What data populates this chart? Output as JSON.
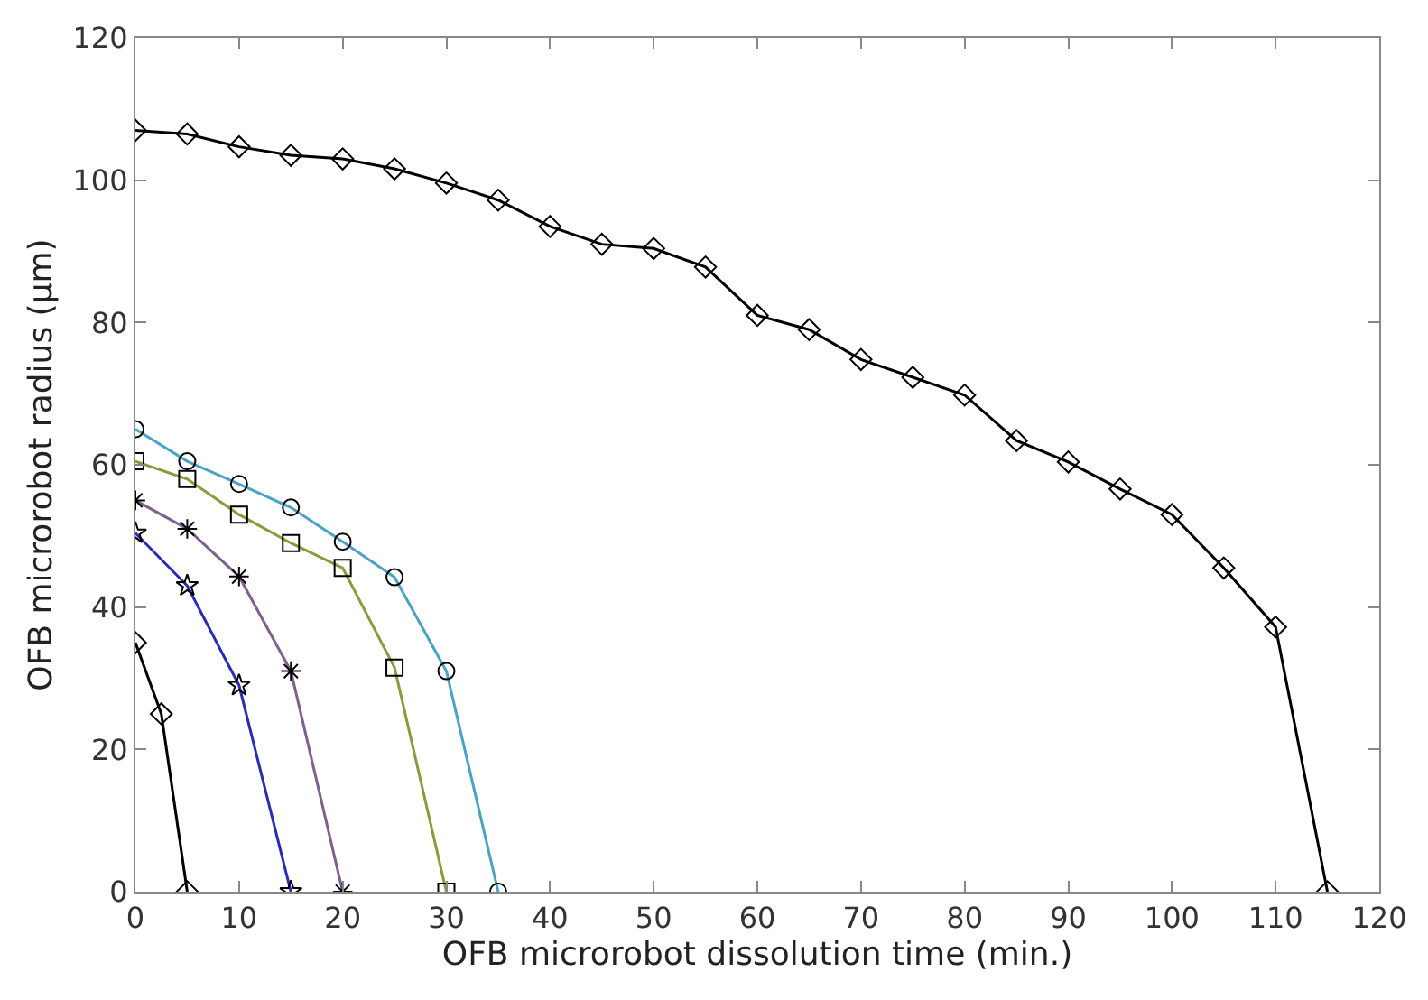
{
  "chart_data": {
    "type": "line",
    "xlabel": "OFB microrobot dissolution time (min.)",
    "ylabel": "OFB microrobot radius (μm)",
    "xlim": [
      0,
      120
    ],
    "ylim": [
      0,
      120
    ],
    "xticks": [
      0,
      10,
      20,
      30,
      40,
      50,
      60,
      70,
      80,
      90,
      100,
      110,
      120
    ],
    "yticks": [
      0,
      20,
      40,
      60,
      80,
      100,
      120
    ],
    "legend": false,
    "series": [
      {
        "color": "#000000",
        "marker": "diamond",
        "x": [
          0,
          5,
          10,
          15,
          20,
          25,
          30,
          35,
          40,
          45,
          50,
          55,
          60,
          65,
          70,
          75,
          80,
          85,
          90,
          95,
          100,
          105,
          110,
          115
        ],
        "values": [
          107,
          106.5,
          104.7,
          103.5,
          103,
          101.6,
          99.6,
          97.2,
          93.5,
          91,
          90.4,
          87.8,
          81,
          79,
          74.8,
          72.3,
          69.8,
          63.4,
          60.4,
          56.6,
          53,
          45.5,
          37.2,
          0
        ]
      },
      {
        "color": "#4aa3c4",
        "marker": "circle",
        "x": [
          0,
          5,
          10,
          15,
          20,
          25,
          30,
          35
        ],
        "values": [
          65,
          60.5,
          57.3,
          54,
          49.2,
          44.2,
          31,
          0
        ]
      },
      {
        "color": "#8c9a3c",
        "marker": "square",
        "x": [
          0,
          5,
          10,
          15,
          20,
          25,
          30
        ],
        "values": [
          60.5,
          58,
          53,
          49,
          45.5,
          31.5,
          0
        ]
      },
      {
        "color": "#7e5f8f",
        "marker": "cross",
        "x": [
          0,
          5,
          10,
          15,
          20
        ],
        "values": [
          55,
          51,
          44.3,
          31,
          0
        ]
      },
      {
        "color": "#2a2ab4",
        "marker": "star",
        "x": [
          0,
          5,
          10,
          15
        ],
        "values": [
          50.4,
          43,
          29,
          0
        ]
      },
      {
        "color": "#000000",
        "marker": "diamond",
        "x": [
          0,
          2.5,
          5
        ],
        "values": [
          35,
          25,
          0
        ]
      }
    ]
  }
}
